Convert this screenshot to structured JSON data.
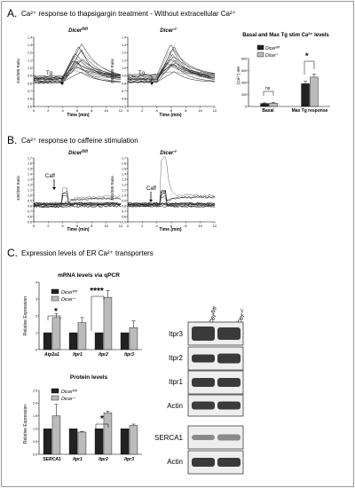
{
  "sections": {
    "A": {
      "letter": "A.",
      "title": "Ca²⁺ response to thapsigargin treatment - Without extracellular Ca²⁺"
    },
    "B": {
      "letter": "B.",
      "title": "Ca²⁺ response to caffeine stimulation"
    },
    "C": {
      "letter": "C.",
      "title": "Expression levels of ER Ca²⁺ transporters"
    }
  },
  "panelA": {
    "left": {
      "title": "Dicerfl/fl",
      "title_main": "Dicer",
      "title_sup": "fl/fl",
      "ylabel": "340/380 Ratio",
      "xlabel": "Time (min)",
      "arrow": "Tg",
      "yticks": [
        "1.4",
        "1.3",
        "1.2",
        "1.1",
        "1.0",
        "0.9",
        "0.8",
        "0.7",
        "0.6",
        "0.5"
      ],
      "xticks": [
        "0",
        "2",
        "4",
        "6",
        "8",
        "10",
        "12"
      ]
    },
    "right": {
      "title": "Dicer-/-",
      "title_main": "Dicer",
      "title_sup": "-/-",
      "ylabel": "340/380 Ratio",
      "xlabel": "Time (min)",
      "arrow": "Tg",
      "yticks": [
        "1.4",
        "1.3",
        "1.2",
        "1.1",
        "1.0",
        "0.9",
        "0.8",
        "0.7",
        "0.6",
        "0.5"
      ],
      "xticks": [
        "0",
        "2",
        "4",
        "6",
        "8",
        "10",
        "12"
      ]
    },
    "bar": {
      "title": "Basal and Max Tg stim Ca²⁺ levels",
      "ylabel": "[Ca²⁺] nM",
      "yticks": [
        "800",
        "600",
        "400",
        "200",
        "0"
      ],
      "legend_a": "Dicer",
      "legend_a_sup": "fl/fl",
      "legend_b": "Dicer",
      "legend_b_sup": "-/-",
      "xlabels": [
        "Basal",
        "Max Tg response"
      ],
      "ns": "ns",
      "sig": "*"
    }
  },
  "panelB": {
    "left": {
      "title_main": "Dicer",
      "title_sup": "fl/fl",
      "ylabel": "340/380 Ratio",
      "xlabel": "Time (min)",
      "arrow": "Caff",
      "yticks": [
        "1.7",
        "1.6",
        "1.5",
        "1.4",
        "1.3",
        "1.2",
        "1.1",
        "1.0",
        "0.9",
        "0.8",
        "0.7",
        "0.6",
        "0.5"
      ],
      "xticks": [
        "0",
        "2",
        "4",
        "6",
        "8",
        "10",
        "12"
      ]
    },
    "right": {
      "title_main": "Dicer",
      "title_sup": "-/-",
      "ylabel": "340/380 Ratio",
      "xlabel": "Time (min)",
      "arrow": "Caff",
      "yticks": [
        "1.7",
        "1.6",
        "1.5",
        "1.4",
        "1.3",
        "1.2",
        "1.1",
        "1.0",
        "0.9",
        "0.8",
        "0.7",
        "0.6",
        "0.5"
      ],
      "xticks": [
        "0",
        "2",
        "4",
        "6",
        "8",
        "10",
        "12"
      ]
    }
  },
  "panelC": {
    "mrna": {
      "title": "mRNA levels via qPCR",
      "ylabel": "Relative Expression",
      "yticks": [
        "4",
        "3",
        "2",
        "1",
        "0"
      ],
      "legend_a": "Dicer",
      "legend_a_sup": "fl/fl",
      "legend_b": "Dicer",
      "legend_b_sup": "-/-",
      "categories": [
        "Atp2a1",
        "Itpr1",
        "Itpr2",
        "Itpr3"
      ],
      "sig1": "*",
      "sig2": "****"
    },
    "protein": {
      "title": "Protein levels",
      "ylabel": "Relative Expression",
      "yticks": [
        "2.5",
        "2.0",
        "1.5",
        "1.0",
        "0.5",
        "0.0"
      ],
      "legend_a": "Dicer",
      "legend_a_sup": "fl/fl",
      "legend_b": "Dicer",
      "legend_b_sup": "-/-",
      "categories": [
        "SERCA1",
        "Itpr1",
        "Itpr2",
        "Itpr3"
      ],
      "sig": "*"
    },
    "blot": {
      "col1_main": "Dicer",
      "col1_sup": "fl/fl",
      "col2_main": "Dicer",
      "col2_sup": "-/-",
      "labels": [
        "Itpr3",
        "Itpr2",
        "Itpr1",
        "Actin",
        "SERCA1",
        "Actin"
      ]
    }
  },
  "chart_data": [
    {
      "type": "bar",
      "title": "Basal and Max Tg stim Ca²⁺ levels",
      "ylabel": "[Ca²⁺] nM",
      "ylim": [
        0,
        800
      ],
      "categories": [
        "Basal",
        "Max Tg response"
      ],
      "series": [
        {
          "name": "Dicerfl/fl",
          "values": [
            50,
            380
          ],
          "errors": [
            10,
            40
          ]
        },
        {
          "name": "Dicer-/-",
          "values": [
            55,
            490
          ],
          "errors": [
            10,
            50
          ]
        }
      ]
    },
    {
      "type": "bar",
      "title": "mRNA levels via qPCR",
      "ylabel": "Relative Expression",
      "ylim": [
        0,
        4
      ],
      "categories": [
        "Atp2a1",
        "Itpr1",
        "Itpr2",
        "Itpr3"
      ],
      "series": [
        {
          "name": "Dicerfl/fl",
          "values": [
            1.0,
            1.0,
            1.0,
            1.0
          ],
          "errors": [
            0,
            0,
            0,
            0
          ]
        },
        {
          "name": "Dicer-/-",
          "values": [
            1.9,
            1.6,
            3.1,
            1.3
          ],
          "errors": [
            0.25,
            0.3,
            0.4,
            0.4
          ]
        }
      ]
    },
    {
      "type": "bar",
      "title": "Protein levels",
      "ylabel": "Relative Expression",
      "ylim": [
        0,
        2.5
      ],
      "categories": [
        "SERCA1",
        "Itpr1",
        "Itpr2",
        "Itpr3"
      ],
      "series": [
        {
          "name": "Dicerfl/fl",
          "values": [
            1.0,
            1.0,
            1.0,
            1.0
          ],
          "errors": [
            0,
            0,
            0,
            0
          ]
        },
        {
          "name": "Dicer-/-",
          "values": [
            1.5,
            0.87,
            1.62,
            1.13
          ],
          "errors": [
            0.45,
            0.02,
            0.07,
            0.05
          ]
        }
      ]
    }
  ]
}
